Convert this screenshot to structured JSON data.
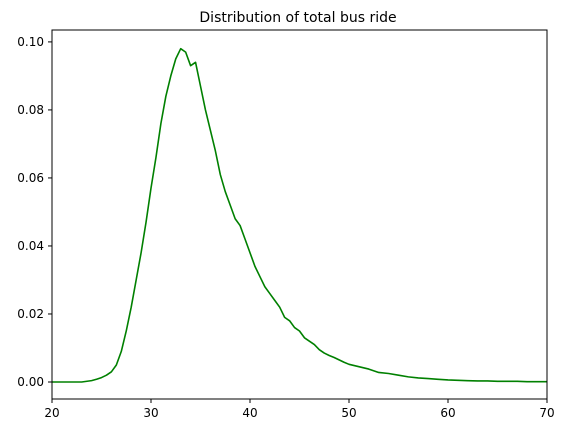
{
  "chart_data": {
    "type": "line",
    "title": "Distribution of total bus ride",
    "xlabel": "",
    "ylabel": "",
    "xlim": [
      20,
      70
    ],
    "ylim": [
      -0.005,
      0.1035
    ],
    "x_ticks": [
      20,
      30,
      40,
      50,
      60,
      70
    ],
    "y_ticks": [
      0.0,
      0.02,
      0.04,
      0.06,
      0.08,
      0.1
    ],
    "x_tick_labels": [
      "20",
      "30",
      "40",
      "50",
      "60",
      "70"
    ],
    "y_tick_labels": [
      "0.00",
      "0.02",
      "0.04",
      "0.06",
      "0.08",
      "0.10"
    ],
    "grid": false,
    "series": [
      {
        "color": "#008000",
        "x": [
          20,
          21,
          22,
          23,
          24,
          24.5,
          25,
          25.5,
          26,
          26.5,
          27,
          27.5,
          28,
          28.5,
          29,
          29.5,
          30,
          30.5,
          31,
          31.5,
          32,
          32.5,
          33,
          33.5,
          34,
          34.5,
          35,
          35.5,
          36,
          36.5,
          37,
          37.5,
          38,
          38.5,
          39,
          39.5,
          40,
          40.5,
          41,
          41.5,
          42,
          42.5,
          43,
          43.5,
          44,
          44.5,
          45,
          45.5,
          46,
          46.5,
          47,
          47.5,
          48,
          48.5,
          49,
          49.5,
          50,
          51,
          52,
          53,
          54,
          55,
          56,
          57,
          58,
          59,
          60,
          61,
          62,
          63,
          64,
          65,
          66,
          67,
          68,
          69,
          70
        ],
        "y": [
          0.0,
          0.0,
          0.0,
          0.0,
          0.0004,
          0.0008,
          0.0013,
          0.002,
          0.003,
          0.005,
          0.009,
          0.015,
          0.022,
          0.03,
          0.038,
          0.047,
          0.057,
          0.066,
          0.076,
          0.084,
          0.09,
          0.095,
          0.098,
          0.097,
          0.093,
          0.094,
          0.087,
          0.08,
          0.074,
          0.068,
          0.061,
          0.056,
          0.052,
          0.048,
          0.046,
          0.042,
          0.038,
          0.034,
          0.031,
          0.028,
          0.026,
          0.024,
          0.022,
          0.019,
          0.018,
          0.016,
          0.015,
          0.013,
          0.012,
          0.011,
          0.0095,
          0.0085,
          0.0078,
          0.0072,
          0.0065,
          0.0058,
          0.0052,
          0.0045,
          0.0038,
          0.0028,
          0.0025,
          0.002,
          0.0015,
          0.0012,
          0.001,
          0.0008,
          0.0006,
          0.0005,
          0.0004,
          0.0003,
          0.0003,
          0.0002,
          0.0002,
          0.0002,
          0.0001,
          0.0001,
          0.0001
        ]
      }
    ]
  }
}
